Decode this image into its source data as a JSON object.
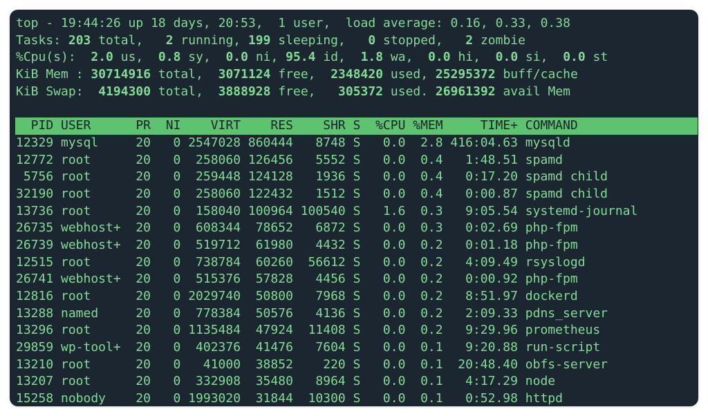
{
  "summary": [
    [
      {
        "text": "top - 19:44:26 up 18 days, 20:53,  1 user,  load average: 0.16, 0.33, 0.38"
      }
    ],
    [
      {
        "text": "Tasks: "
      },
      {
        "text": "203",
        "bold": true
      },
      {
        "text": " total,   "
      },
      {
        "text": "2",
        "bold": true
      },
      {
        "text": " running, "
      },
      {
        "text": "199",
        "bold": true
      },
      {
        "text": " sleeping,   "
      },
      {
        "text": "0",
        "bold": true
      },
      {
        "text": " stopped,   "
      },
      {
        "text": "2",
        "bold": true
      },
      {
        "text": " zombie"
      }
    ],
    [
      {
        "text": "%Cpu(s):  "
      },
      {
        "text": "2.0",
        "bold": true
      },
      {
        "text": " us,  "
      },
      {
        "text": "0.8",
        "bold": true
      },
      {
        "text": " sy,  "
      },
      {
        "text": "0.0",
        "bold": true
      },
      {
        "text": " ni, "
      },
      {
        "text": "95.4",
        "bold": true
      },
      {
        "text": " id,  "
      },
      {
        "text": "1.8",
        "bold": true
      },
      {
        "text": " wa,  "
      },
      {
        "text": "0.0",
        "bold": true
      },
      {
        "text": " hi,  "
      },
      {
        "text": "0.0",
        "bold": true
      },
      {
        "text": " si,  "
      },
      {
        "text": "0.0",
        "bold": true
      },
      {
        "text": " st"
      }
    ],
    [
      {
        "text": "KiB Mem : "
      },
      {
        "text": "30714916",
        "bold": true
      },
      {
        "text": " total,  "
      },
      {
        "text": "3071124",
        "bold": true
      },
      {
        "text": " free,  "
      },
      {
        "text": "2348420",
        "bold": true
      },
      {
        "text": " used, "
      },
      {
        "text": "25295372",
        "bold": true
      },
      {
        "text": " buff/cache"
      }
    ],
    [
      {
        "text": "KiB Swap:  "
      },
      {
        "text": "4194300",
        "bold": true
      },
      {
        "text": " total,  "
      },
      {
        "text": "3888928",
        "bold": true
      },
      {
        "text": " free,   "
      },
      {
        "text": "305372",
        "bold": true
      },
      {
        "text": " used. "
      },
      {
        "text": "26961392",
        "bold": true
      },
      {
        "text": " avail Mem"
      }
    ]
  ],
  "table": {
    "header": [
      "PID",
      "USER",
      "PR",
      "NI",
      "VIRT",
      "RES",
      "SHR",
      "S",
      "%CPU",
      "%MEM",
      "TIME+",
      "COMMAND"
    ],
    "rows": [
      [
        "12329",
        "mysql",
        "20",
        "0",
        "2547028",
        "860444",
        "8748",
        "S",
        "0.0",
        "2.8",
        "416:04.63",
        "mysqld"
      ],
      [
        "12772",
        "root",
        "20",
        "0",
        "258060",
        "126456",
        "5552",
        "S",
        "0.0",
        "0.4",
        "1:48.51",
        "spamd"
      ],
      [
        "5756",
        "root",
        "20",
        "0",
        "259448",
        "124128",
        "1936",
        "S",
        "0.0",
        "0.4",
        "0:17.20",
        "spamd child"
      ],
      [
        "32190",
        "root",
        "20",
        "0",
        "258060",
        "122432",
        "1512",
        "S",
        "0.0",
        "0.4",
        "0:00.87",
        "spamd child"
      ],
      [
        "13736",
        "root",
        "20",
        "0",
        "158040",
        "100964",
        "100540",
        "S",
        "1.6",
        "0.3",
        "9:05.54",
        "systemd-journal"
      ],
      [
        "26735",
        "webhost+",
        "20",
        "0",
        "608344",
        "78652",
        "6872",
        "S",
        "0.0",
        "0.3",
        "0:02.69",
        "php-fpm"
      ],
      [
        "26739",
        "webhost+",
        "20",
        "0",
        "519712",
        "61980",
        "4432",
        "S",
        "0.0",
        "0.2",
        "0:01.18",
        "php-fpm"
      ],
      [
        "12515",
        "root",
        "20",
        "0",
        "738784",
        "60260",
        "56612",
        "S",
        "0.0",
        "0.2",
        "4:09.49",
        "rsyslogd"
      ],
      [
        "26741",
        "webhost+",
        "20",
        "0",
        "515376",
        "57828",
        "4456",
        "S",
        "0.0",
        "0.2",
        "0:00.92",
        "php-fpm"
      ],
      [
        "12816",
        "root",
        "20",
        "0",
        "2029740",
        "50800",
        "7968",
        "S",
        "0.0",
        "0.2",
        "8:51.97",
        "dockerd"
      ],
      [
        "13288",
        "named",
        "20",
        "0",
        "778384",
        "50576",
        "4136",
        "S",
        "0.0",
        "0.2",
        "2:09.33",
        "pdns_server"
      ],
      [
        "13296",
        "root",
        "20",
        "0",
        "1135484",
        "47924",
        "11408",
        "S",
        "0.0",
        "0.2",
        "9:29.96",
        "prometheus"
      ],
      [
        "29859",
        "wp-tool+",
        "20",
        "0",
        "402376",
        "41476",
        "7604",
        "S",
        "0.0",
        "0.1",
        "9:20.88",
        "run-script"
      ],
      [
        "13210",
        "root",
        "20",
        "0",
        "41000",
        "38852",
        "220",
        "S",
        "0.0",
        "0.1",
        "20:48.40",
        "obfs-server"
      ],
      [
        "13207",
        "root",
        "20",
        "0",
        "332908",
        "35480",
        "8964",
        "S",
        "0.0",
        "0.1",
        "4:17.29",
        "node"
      ],
      [
        "15258",
        "nobody",
        "20",
        "0",
        "1993020",
        "31844",
        "10300",
        "S",
        "0.0",
        "0.1",
        "0:52.98",
        "httpd"
      ]
    ]
  }
}
